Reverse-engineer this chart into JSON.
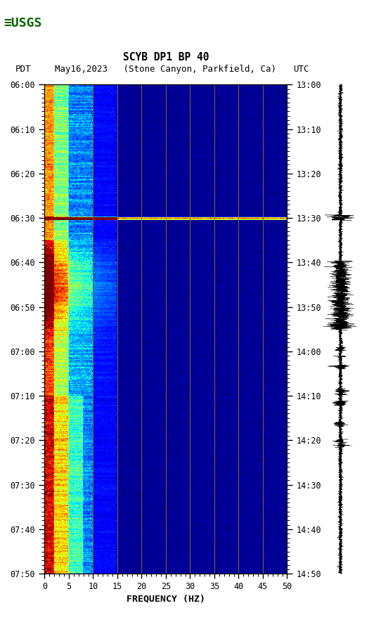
{
  "title_line1": "SCYB DP1 BP 40",
  "title_line2_pdt": "PDT  May16,2023  (Stone Canyon, Parkfield, Ca)         UTC",
  "xlabel": "FREQUENCY (HZ)",
  "freq_min": 0,
  "freq_max": 50,
  "left_ticks": [
    "06:00",
    "06:10",
    "06:20",
    "06:30",
    "06:40",
    "06:50",
    "07:00",
    "07:10",
    "07:20",
    "07:30",
    "07:40",
    "07:50"
  ],
  "right_ticks": [
    "13:00",
    "13:10",
    "13:20",
    "13:30",
    "13:40",
    "13:50",
    "14:00",
    "14:10",
    "14:20",
    "14:30",
    "14:40",
    "14:50"
  ],
  "freq_ticks": [
    0,
    5,
    10,
    15,
    20,
    25,
    30,
    35,
    40,
    45,
    50
  ],
  "vert_lines_freq": [
    10,
    15,
    20,
    25,
    30,
    35,
    40,
    45
  ],
  "colormap": "jet",
  "usgs_logo_color": "#006400",
  "figsize": [
    5.52,
    8.92
  ],
  "dpi": 100,
  "n_time": 660,
  "n_freq": 500
}
